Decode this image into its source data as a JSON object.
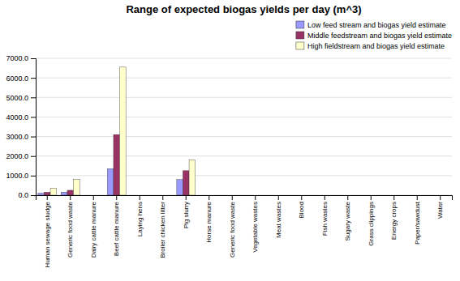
{
  "chart_data": {
    "type": "bar",
    "title": "Range of expected biogas yields per day (m^3)",
    "categories": [
      "Human sewage sludge",
      "Generic food waste",
      "Dairy cattle manure",
      "Beef cattle manure",
      "Laying hens",
      "Broiler chicken litter",
      "Pig slurry",
      "Horse manure",
      "Generic food waste",
      "Vegetable wastes",
      "Meat wastes",
      "Blood",
      "Fish wastes",
      "Sugary waste",
      "Grass clippings",
      "Energy crops",
      "Paper/sawdust",
      "Water"
    ],
    "series": [
      {
        "name": "Low feed stream and biogas yield estimate",
        "color": "#9999FF",
        "values": [
          100,
          150,
          0,
          1350,
          0,
          0,
          800,
          0,
          0,
          0,
          0,
          0,
          0,
          0,
          0,
          0,
          0,
          0
        ]
      },
      {
        "name": "Middle feedstream and biogas yield estimate",
        "color": "#993366",
        "values": [
          150,
          250,
          0,
          3100,
          0,
          0,
          1250,
          0,
          0,
          0,
          0,
          0,
          0,
          0,
          0,
          0,
          0,
          0
        ]
      },
      {
        "name": "High fieldstream and biogas yield estimate",
        "color": "#FFFFCC",
        "values": [
          350,
          800,
          0,
          6550,
          0,
          0,
          1800,
          0,
          0,
          0,
          0,
          0,
          0,
          0,
          0,
          0,
          0,
          0
        ]
      }
    ],
    "ylim": [
      0,
      7000
    ],
    "yticks": [
      {
        "value": 0,
        "label": "0.0"
      },
      {
        "value": 1000,
        "label": "1000.0"
      },
      {
        "value": 2000,
        "label": "2000.0"
      },
      {
        "value": 3000,
        "label": "3000.0"
      },
      {
        "value": 4000,
        "label": "4000.0"
      },
      {
        "value": 5000,
        "label": "5000.0"
      },
      {
        "value": 6000,
        "label": "6000.0"
      },
      {
        "value": 7000,
        "label": "7000.0"
      }
    ],
    "grid": true,
    "legend": "upper right"
  }
}
